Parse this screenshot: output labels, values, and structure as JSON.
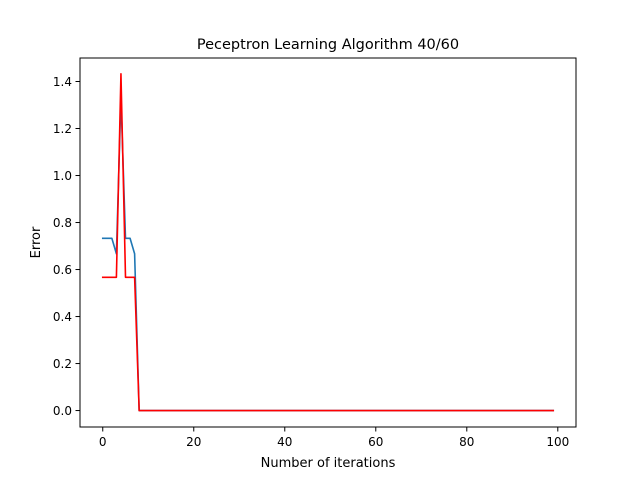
{
  "chart_data": {
    "type": "line",
    "title": "Peceptron Learning Algorithm 40/60",
    "xlabel": "Number of iterations",
    "ylabel": "Error",
    "xlim": [
      -5,
      104
    ],
    "ylim": [
      -0.07,
      1.5
    ],
    "xticks": [
      0,
      20,
      40,
      60,
      80,
      100
    ],
    "yticks": [
      0.0,
      0.2,
      0.4,
      0.6,
      0.8,
      1.0,
      1.2,
      1.4
    ],
    "xtick_labels": [
      "0",
      "20",
      "40",
      "60",
      "80",
      "100"
    ],
    "ytick_labels": [
      "0.0",
      "0.2",
      "0.4",
      "0.6",
      "0.8",
      "1.0",
      "1.2",
      "1.4"
    ],
    "grid": false,
    "legend": "none",
    "series": [
      {
        "color": "#1f77b4",
        "x": [
          0,
          1,
          2,
          3,
          4,
          5,
          6,
          7,
          8,
          99
        ],
        "y": [
          0.733,
          0.733,
          0.733,
          0.667,
          1.333,
          0.733,
          0.733,
          0.667,
          0.0,
          0.0
        ]
      },
      {
        "color": "#ff0000",
        "x": [
          0,
          1,
          2,
          3,
          4,
          5,
          6,
          7,
          8,
          99
        ],
        "y": [
          0.567,
          0.567,
          0.567,
          0.567,
          1.433,
          0.567,
          0.567,
          0.567,
          0.0,
          0.0
        ]
      }
    ]
  }
}
